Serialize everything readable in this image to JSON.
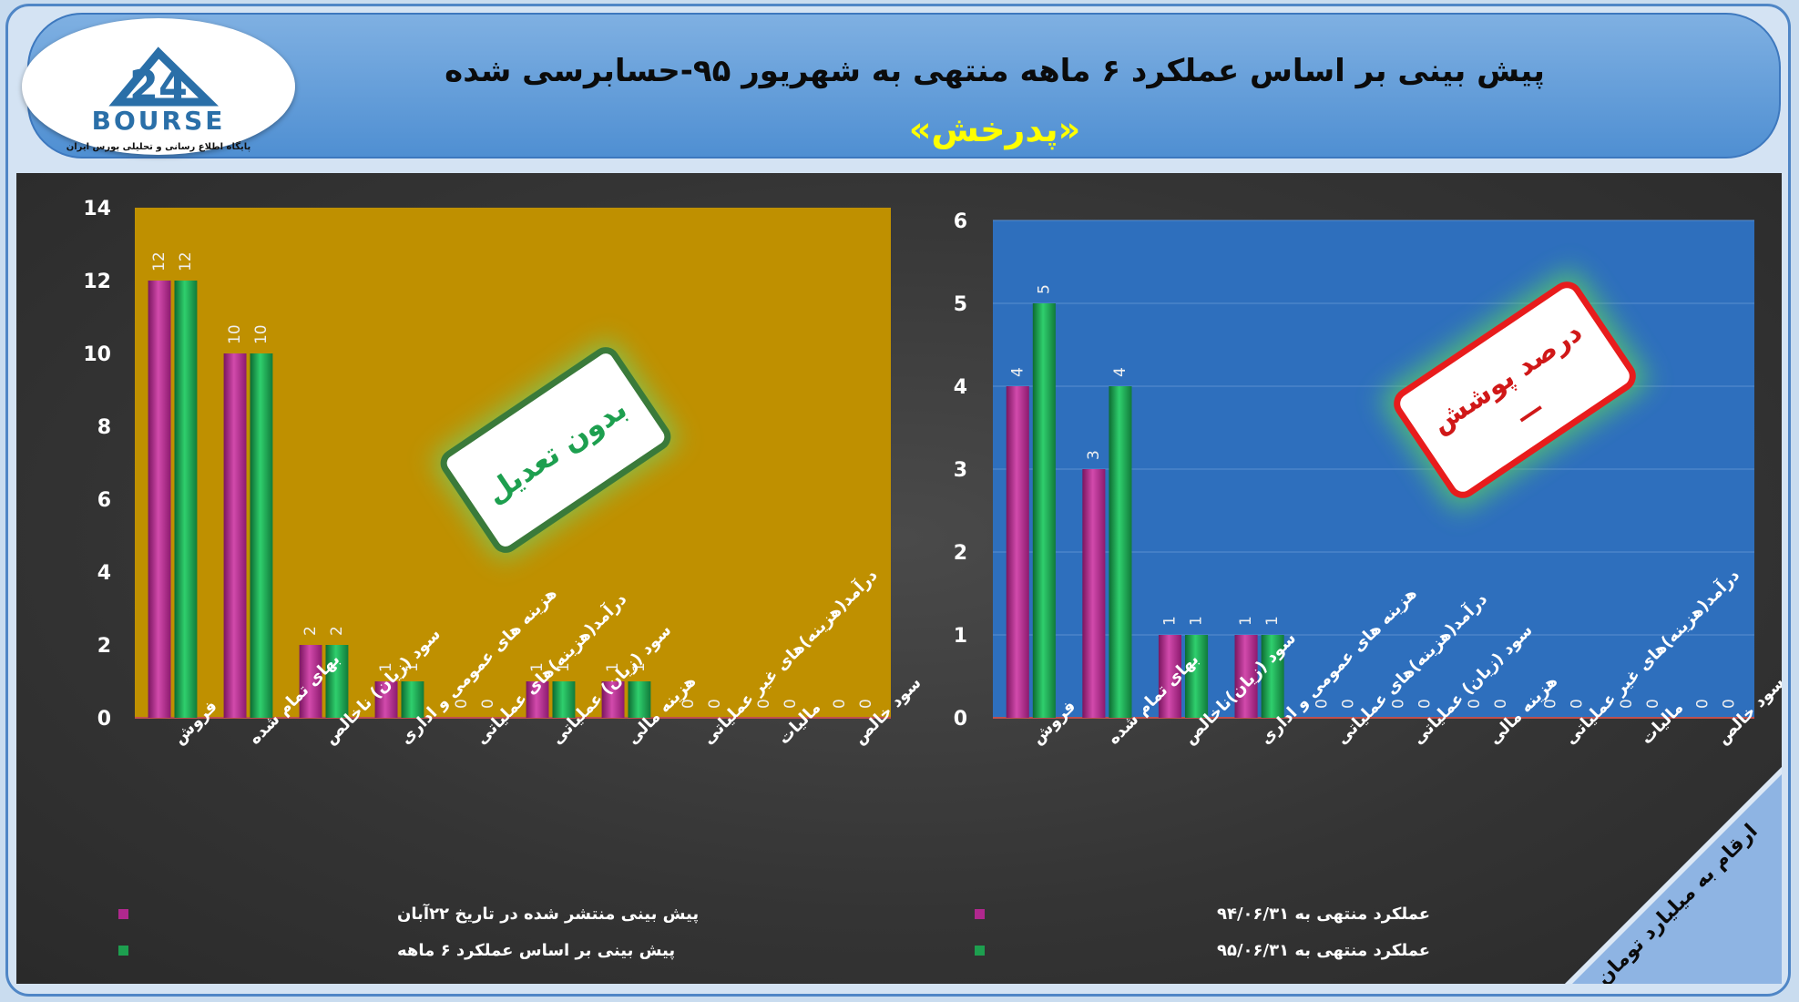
{
  "header": {
    "title": "پیش بینی بر اساس عملکرد ۶ ماهه منتهی به شهریور ۹۵-حسابرسی شده",
    "subtitle": "«پدرخش»"
  },
  "logo": {
    "number": "24",
    "word": "BOURSE",
    "tagline": "پایگاه اطلاع رسانی و تحلیلی بورس ایران"
  },
  "unit_note": "ارقام به میلیارد تومان",
  "colors": {
    "series_a": "#b0288e",
    "series_b": "#1d9f4f",
    "left_plot_bg": "#bf9000",
    "right_plot_bg": "#2e6fbd"
  },
  "left_stamp": {
    "text": "بدون تعدیل"
  },
  "right_stamp": {
    "text": "درصد پوشش",
    "value": "—"
  },
  "chart_data": [
    {
      "type": "bar",
      "categories": [
        "فروش",
        "بهای تمام شده",
        "سود (زیان) ناخالص",
        "هزینه های عمومی و اداری",
        "درآمد(هزینه)های عملیاتی",
        "سود (زیان) عملیاتی",
        "هزینه مالی",
        "درآمد(هزینه)های غیر عملیاتی",
        "مالیات",
        "سود خالص"
      ],
      "series": [
        {
          "name": "پیش بینی منتشر شده در تاریخ ۲۲آبان",
          "values": [
            12,
            10,
            2,
            1,
            0,
            1,
            1,
            0,
            0,
            0
          ]
        },
        {
          "name": "پیش بینی بر اساس عملکرد ۶ ماهه",
          "values": [
            12,
            10,
            2,
            1,
            0,
            1,
            1,
            0,
            0,
            0
          ]
        }
      ],
      "ylim": [
        0,
        14
      ],
      "yticks": [
        0,
        2,
        4,
        6,
        8,
        10,
        12,
        14
      ],
      "grid": false,
      "legend": "bottom"
    },
    {
      "type": "bar",
      "categories": [
        "فروش",
        "بهای تمام شده",
        "سود (زیان)ناخالص",
        "هزینه های عمومی و اداری",
        "درآمد(هزینه)های عملیاتی",
        "سود (زیان) عملیاتی",
        "هزینه مالی",
        "درآمد(هزینه)های غیر عملیاتی",
        "مالیات",
        "سود خالص"
      ],
      "series": [
        {
          "name": "عملکرد منتهی به ۹۴/۰۶/۳۱",
          "values": [
            4,
            3,
            1,
            1,
            0,
            0,
            0,
            0,
            0,
            0
          ]
        },
        {
          "name": "عملکرد منتهی به ۹۵/۰۶/۳۱",
          "values": [
            5,
            4,
            1,
            1,
            0,
            0,
            0,
            0,
            0,
            0
          ]
        }
      ],
      "ylim": [
        0,
        6
      ],
      "yticks": [
        0,
        1,
        2,
        3,
        4,
        5,
        6
      ],
      "grid": true,
      "legend": "bottom"
    }
  ]
}
